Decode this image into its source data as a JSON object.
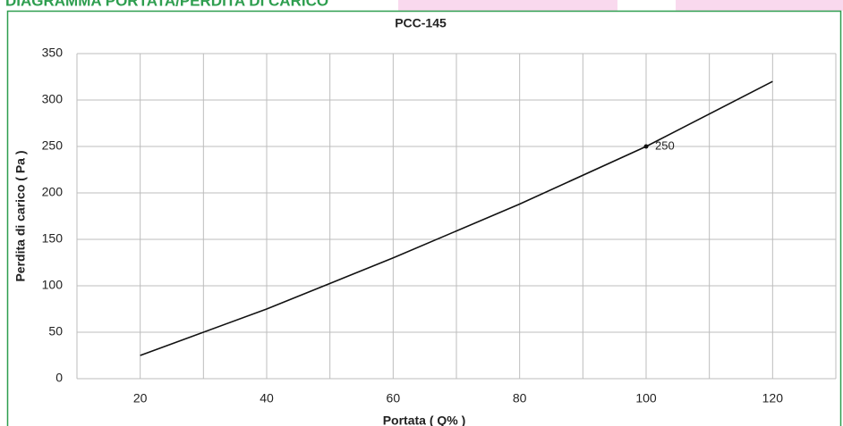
{
  "header": {
    "title": "DIAGRAMMA PORTATA/PERDITA DI CARICO"
  },
  "chart_data": {
    "type": "line",
    "title": "PCC-145",
    "x_label": "Portata ( Q% )",
    "y_label": "Perdita di carico ( Pa )",
    "x": [
      20,
      40,
      60,
      80,
      100,
      120
    ],
    "series": [
      {
        "name": "PCC-145",
        "color": "#111111",
        "values": [
          25,
          75,
          130,
          188,
          250,
          320
        ]
      }
    ],
    "labeled_index": 4,
    "xlim": [
      10,
      130
    ],
    "xticks": [
      20,
      40,
      60,
      80,
      100,
      120
    ],
    "xgrid": [
      10,
      20,
      30,
      40,
      50,
      60,
      70,
      80,
      90,
      100,
      110,
      120,
      130
    ],
    "ylim": [
      0,
      350
    ],
    "yticks": [
      0,
      50,
      100,
      150,
      200,
      250,
      300,
      350
    ],
    "grid": true
  }
}
